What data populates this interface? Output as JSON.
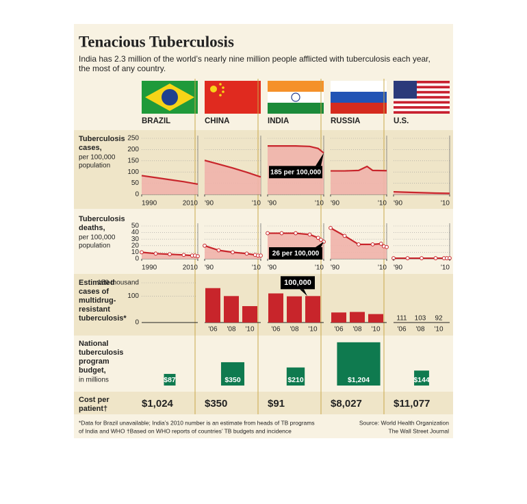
{
  "title": "Tenacious Tuberculosis",
  "subtitle": [
    "India has 2.3 million of the world’s nearly nine million people afflicted with tuberculosis each year,",
    "the most of any country."
  ],
  "countries": [
    "BRAZIL",
    "CHINA",
    "INDIA",
    "RUSSIA",
    "U.S."
  ],
  "cases": {
    "label": [
      "Tuberculosis",
      "cases,"
    ],
    "sublabel": [
      "per 100,000",
      "population"
    ],
    "ylim": [
      0,
      250
    ],
    "yticks": [
      0,
      50,
      100,
      150,
      200,
      250
    ],
    "xlim": [
      1990,
      2010
    ],
    "color": "#c8252b",
    "fill": "#efb3ab",
    "series": [
      {
        "x": [
          1990,
          1995,
          2000,
          2005,
          2010
        ],
        "values": [
          84,
          75,
          66,
          57,
          46
        ],
        "xticks": [
          {
            "value": 1990,
            "label": "1990"
          },
          {
            "value": 2010,
            "label": "2010"
          }
        ]
      },
      {
        "x": [
          1990,
          1995,
          2000,
          2005,
          2010
        ],
        "values": [
          152,
          135,
          118,
          99,
          78
        ],
        "xticks": [
          {
            "value": 1990,
            "label": "'90"
          },
          {
            "value": 2010,
            "label": "'10"
          }
        ]
      },
      {
        "x": [
          1990,
          1995,
          2000,
          2005,
          2008,
          2010
        ],
        "values": [
          216,
          216,
          216,
          214,
          205,
          185
        ],
        "xticks": [
          {
            "value": 1990,
            "label": "'90"
          },
          {
            "value": 2010,
            "label": "'10"
          }
        ],
        "annotation": "185 per 100,000"
      },
      {
        "x": [
          1990,
          1995,
          2000,
          2003,
          2005,
          2010
        ],
        "values": [
          105,
          105,
          107,
          125,
          107,
          106
        ],
        "xticks": [
          {
            "value": 1990,
            "label": "'90"
          },
          {
            "value": 2010,
            "label": "'10"
          }
        ]
      },
      {
        "x": [
          1990,
          1995,
          2000,
          2005,
          2010
        ],
        "values": [
          12,
          10,
          8,
          6,
          5
        ],
        "xticks": [
          {
            "value": 1990,
            "label": "'90"
          },
          {
            "value": 2010,
            "label": "'10"
          }
        ]
      }
    ]
  },
  "deaths": {
    "label": [
      "Tuberculosis",
      "deaths,"
    ],
    "sublabel": [
      "per 100,000",
      "population"
    ],
    "ylim": [
      0,
      50
    ],
    "yticks": [
      0,
      10,
      20,
      30,
      40,
      50
    ],
    "xlim": [
      1990,
      2010
    ],
    "color": "#c8252b",
    "fill": "#efb3ab",
    "markers": true,
    "series": [
      {
        "x": [
          1990,
          1995,
          2000,
          2005,
          2008,
          2009,
          2010
        ],
        "values": [
          10,
          8,
          7,
          6,
          5,
          5,
          4
        ],
        "xticks": [
          {
            "value": 1990,
            "label": "1990"
          },
          {
            "value": 2010,
            "label": "2010"
          }
        ]
      },
      {
        "x": [
          1990,
          1995,
          2000,
          2005,
          2008,
          2009,
          2010
        ],
        "values": [
          20,
          13,
          10,
          8,
          6,
          5,
          5
        ],
        "xticks": [
          {
            "value": 1990,
            "label": "'90"
          },
          {
            "value": 2010,
            "label": "'10"
          }
        ]
      },
      {
        "x": [
          1990,
          1995,
          2000,
          2005,
          2008,
          2009,
          2010
        ],
        "values": [
          39,
          39,
          39,
          37,
          32,
          29,
          26
        ],
        "xticks": [
          {
            "value": 1990,
            "label": "'90"
          },
          {
            "value": 2010,
            "label": "'10"
          }
        ],
        "annotation": "26 per 100,000"
      },
      {
        "x": [
          1990,
          1995,
          2000,
          2005,
          2008,
          2009,
          2010
        ],
        "values": [
          47,
          35,
          22,
          22,
          23,
          19,
          18
        ],
        "xticks": [
          {
            "value": 1990,
            "label": "'90"
          },
          {
            "value": 2010,
            "label": "'10"
          }
        ]
      },
      {
        "x": [
          1990,
          1995,
          2000,
          2005,
          2008,
          2009,
          2010
        ],
        "values": [
          1,
          1,
          1,
          1,
          1,
          1,
          1
        ],
        "xticks": [
          {
            "value": 1990,
            "label": "'90"
          },
          {
            "value": 2010,
            "label": "'10"
          }
        ]
      }
    ]
  },
  "mdr": {
    "label": [
      "Estimated",
      "cases of",
      "multidrug-",
      "resistant",
      "tuberculosis*"
    ],
    "ylim": [
      0,
      150
    ],
    "yticks": [
      0,
      100,
      {
        "value": 150,
        "label": "150 thousand"
      }
    ],
    "categories": [
      "'06",
      "'08",
      "'10"
    ],
    "color": "#c8252b",
    "series": [
      {
        "values": [
          null,
          null,
          null
        ]
      },
      {
        "values": [
          130,
          100,
          62
        ]
      },
      {
        "values": [
          110,
          99,
          100
        ],
        "annotation": "100,000"
      },
      {
        "values": [
          38,
          40,
          32
        ]
      },
      {
        "values": [
          0.111,
          0.103,
          0.092
        ],
        "value_labels": [
          "111",
          "103",
          "92"
        ]
      }
    ]
  },
  "budget": {
    "label": [
      "National",
      "tuberculosis",
      "program",
      "budget,"
    ],
    "sublabel": "in millions",
    "color": "#0f7a4f",
    "values": [
      87,
      350,
      210,
      1204,
      144
    ],
    "value_labels": [
      "$87",
      "$350",
      "$210",
      "$1,204",
      "$144"
    ]
  },
  "cost": {
    "label": [
      "Cost per",
      "patient†"
    ],
    "values": [
      "$1,024",
      "$350",
      "$91",
      "$8,027",
      "$11,077"
    ]
  },
  "footnotes": [
    "*Data for Brazil unavailable; India’s 2010 number is an estimate from heads of TB programs",
    "of India and WHO   †Based on WHO reports of countries’ TB budgets and incidence"
  ],
  "source": [
    "Source: World Health Organization",
    "The Wall Street Journal"
  ]
}
